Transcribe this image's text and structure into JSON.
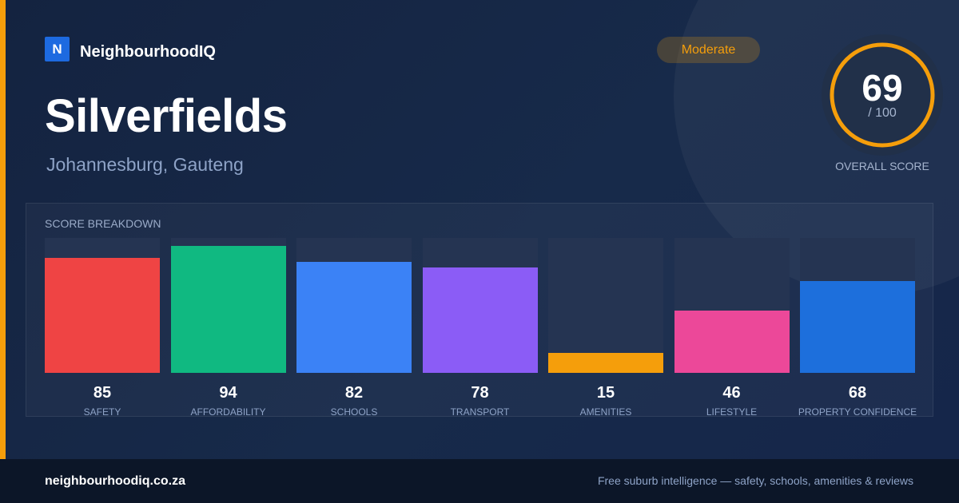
{
  "brand": {
    "logo_letter": "N",
    "name": "NeighbourhoodIQ"
  },
  "suburb": {
    "name": "Silverfields",
    "location": "Johannesburg, Gauteng"
  },
  "rating_badge": "Moderate",
  "overall": {
    "score": "69",
    "max": "/ 100",
    "caption": "OVERALL SCORE",
    "fraction": 0.69
  },
  "colors": {
    "accent": "#f59e0b",
    "brand": "#1d6ae0"
  },
  "chart_data": {
    "type": "bar",
    "title": "SCORE BREAKDOWN",
    "categories": [
      "SAFETY",
      "AFFORDABILITY",
      "SCHOOLS",
      "TRANSPORT",
      "AMENITIES",
      "LIFESTYLE",
      "PROPERTY CONFIDENCE"
    ],
    "values": [
      85,
      94,
      82,
      78,
      15,
      46,
      68
    ],
    "colors": [
      "#ef4444",
      "#10b981",
      "#3b82f6",
      "#8b5cf6",
      "#f59e0b",
      "#ec4899",
      "#1d6fdc"
    ],
    "ylim": [
      0,
      100
    ],
    "grid": false
  },
  "footer": {
    "domain": "neighbourhoodiq.co.za",
    "tagline": "Free suburb intelligence — safety, schools, amenities & reviews"
  }
}
